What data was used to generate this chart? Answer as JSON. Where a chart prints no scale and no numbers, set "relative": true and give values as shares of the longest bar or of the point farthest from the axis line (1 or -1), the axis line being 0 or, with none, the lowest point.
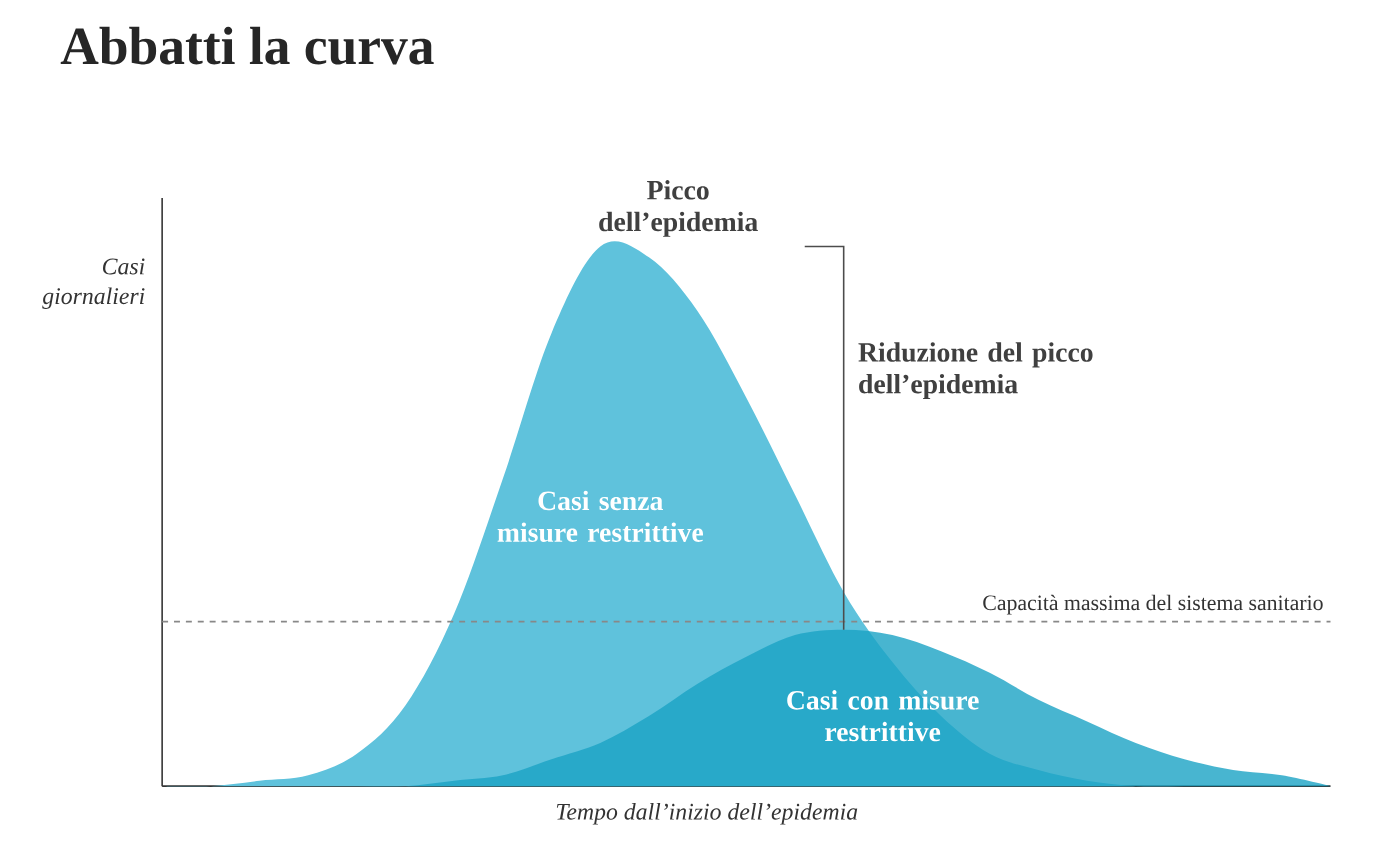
{
  "chart_data": {
    "type": "area",
    "title": "Abbatti la curva",
    "xlabel": "Tempo dall’inizio dell’epidemia",
    "ylabel": "Casi giornalieri",
    "relative": true,
    "categories": [
      null,
      null,
      null,
      null,
      null,
      null,
      null,
      null,
      null,
      null,
      null,
      null,
      null,
      null,
      null,
      null,
      null,
      null,
      null,
      null,
      null,
      null,
      null,
      null,
      null
    ],
    "series": [
      {
        "name": "Casi senza misure restrittive",
        "color": "#5fc2dc",
        "values": [
          0,
          0,
          0.01,
          0.02,
          0.06,
          0.15,
          0.32,
          0.57,
          0.84,
          1.0,
          0.98,
          0.88,
          0.72,
          0.54,
          0.36,
          0.23,
          0.13,
          0.06,
          0.03,
          0.01,
          0,
          0,
          0,
          0,
          0
        ]
      },
      {
        "name": "Casi con misure restrittive",
        "color": "#1aa3c4",
        "values": [
          0,
          0,
          0,
          0,
          0,
          0,
          0.01,
          0.02,
          0.05,
          0.08,
          0.13,
          0.19,
          0.24,
          0.28,
          0.29,
          0.28,
          0.25,
          0.21,
          0.16,
          0.12,
          0.08,
          0.05,
          0.03,
          0.02,
          0
        ]
      }
    ],
    "ref_lines": [
      {
        "axis": "y",
        "value": 0.305,
        "label": "Capacità massima del sistema sanitario",
        "color": "#888888",
        "line_style": "dashed"
      }
    ],
    "annotations": [
      "Picco dell’epidemia",
      "Riduzione del picco dell’epidemia"
    ]
  }
}
